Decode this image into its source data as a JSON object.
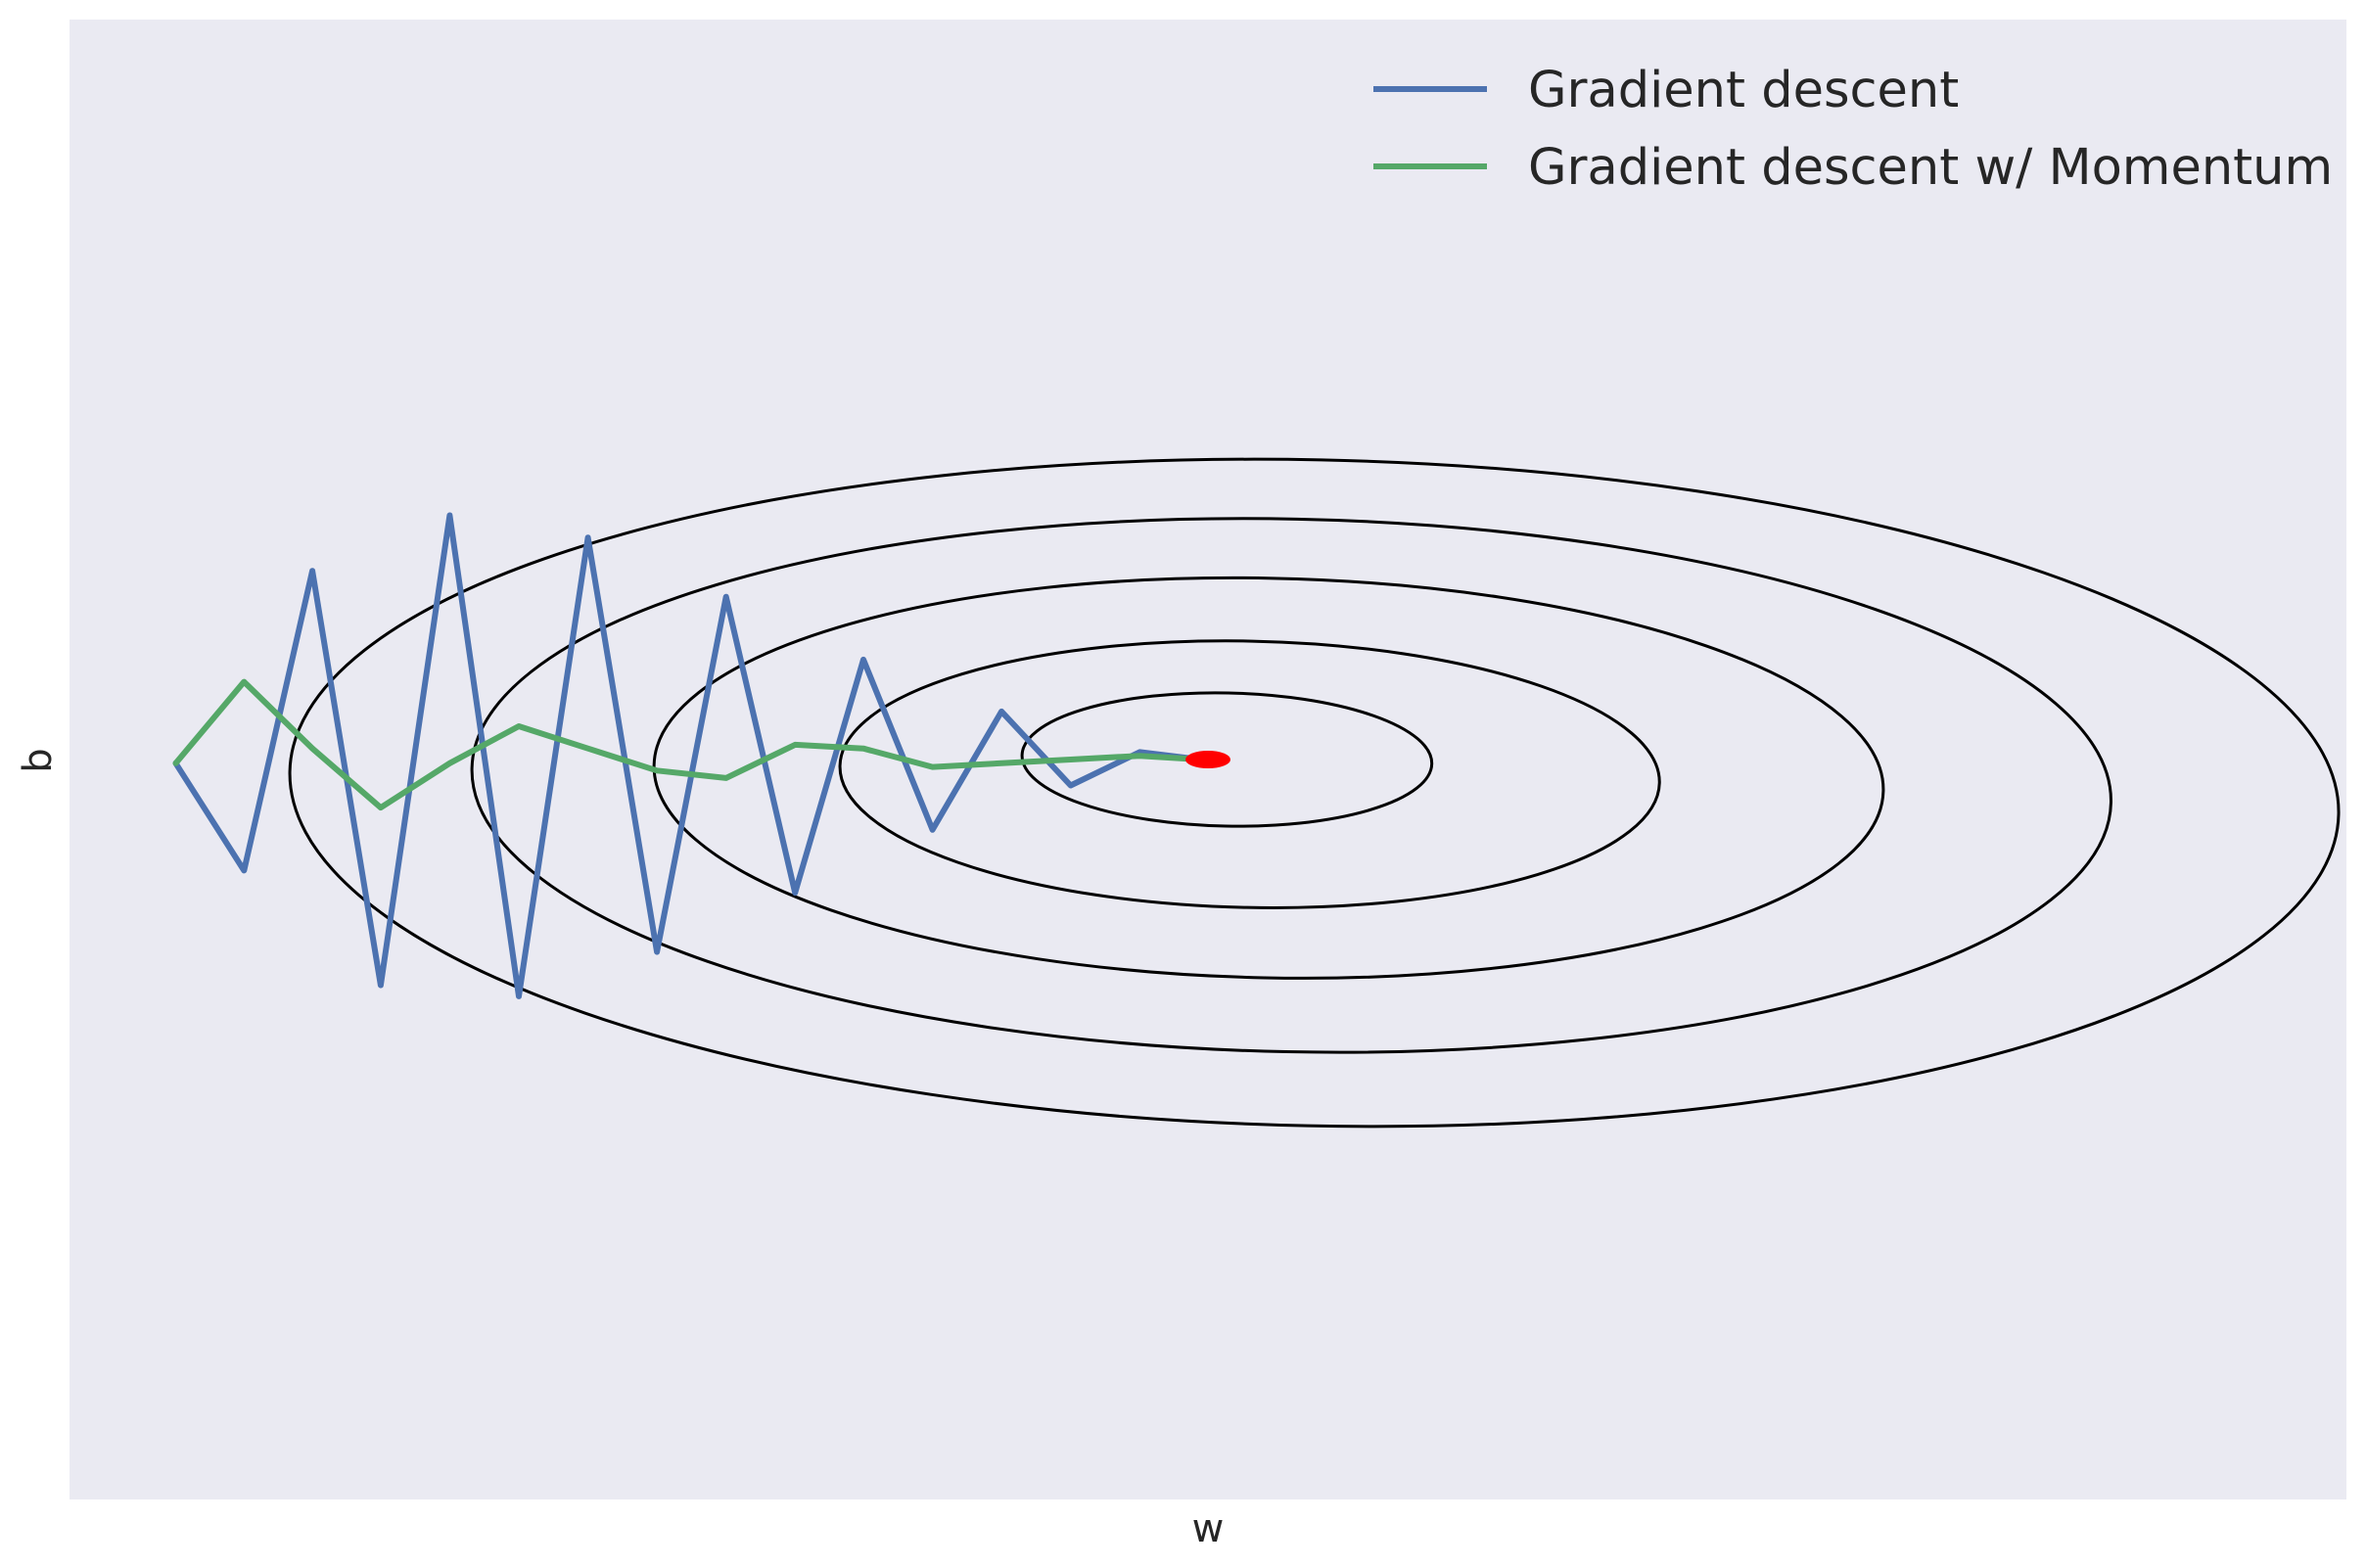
{
  "chart_data": {
    "type": "line",
    "title": "",
    "xlabel": "w",
    "ylabel": "b",
    "xlim": [
      -1.5,
      1.5
    ],
    "ylim": [
      -1.0,
      1.0
    ],
    "grid": false,
    "legend_placement": "top-right",
    "background_color": "#EAEAF2",
    "contours": {
      "color": "#000000",
      "levels": [
        {
          "cx": 0.025,
          "cy": 0.0,
          "rx": 0.27,
          "ry": 0.09,
          "tilt_deg": 1.2
        },
        {
          "cx": 0.055,
          "cy": -0.02,
          "rx": 0.54,
          "ry": 0.18,
          "tilt_deg": 1.2
        },
        {
          "cx": 0.08,
          "cy": -0.025,
          "rx": 0.81,
          "ry": 0.27,
          "tilt_deg": 1.2
        },
        {
          "cx": 0.11,
          "cy": -0.035,
          "rx": 1.08,
          "ry": 0.36,
          "tilt_deg": 1.2
        },
        {
          "cx": 0.14,
          "cy": -0.045,
          "rx": 1.35,
          "ry": 0.45,
          "tilt_deg": 1.2
        }
      ]
    },
    "minimum": {
      "x": 0.0,
      "y": 0.0,
      "color": "#FF0000"
    },
    "series": [
      {
        "name": "Gradient descent",
        "color": "#4C72B0",
        "points": [
          [
            -1.36,
            -0.005
          ],
          [
            -1.27,
            -0.15
          ],
          [
            -1.18,
            0.255
          ],
          [
            -1.09,
            -0.305
          ],
          [
            -0.999,
            0.33
          ],
          [
            -0.908,
            -0.32
          ],
          [
            -0.817,
            0.3
          ],
          [
            -0.726,
            -0.26
          ],
          [
            -0.635,
            0.22
          ],
          [
            -0.544,
            -0.18
          ],
          [
            -0.454,
            0.135
          ],
          [
            -0.363,
            -0.095
          ],
          [
            -0.272,
            0.065
          ],
          [
            -0.181,
            -0.035
          ],
          [
            -0.09,
            0.01
          ],
          [
            -0.01,
            0.0
          ]
        ]
      },
      {
        "name": "Gradient descent w/ Momentum",
        "color": "#55A868",
        "points": [
          [
            -1.36,
            -0.005
          ],
          [
            -1.27,
            0.105
          ],
          [
            -1.18,
            0.015
          ],
          [
            -1.09,
            -0.065
          ],
          [
            -0.999,
            -0.005
          ],
          [
            -0.908,
            0.045
          ],
          [
            -0.817,
            0.015
          ],
          [
            -0.726,
            -0.015
          ],
          [
            -0.635,
            -0.025
          ],
          [
            -0.544,
            0.02
          ],
          [
            -0.454,
            0.015
          ],
          [
            -0.363,
            -0.01
          ],
          [
            -0.272,
            -0.005
          ],
          [
            -0.181,
            0.0
          ],
          [
            -0.09,
            0.005
          ],
          [
            -0.01,
            0.0
          ]
        ]
      }
    ]
  }
}
